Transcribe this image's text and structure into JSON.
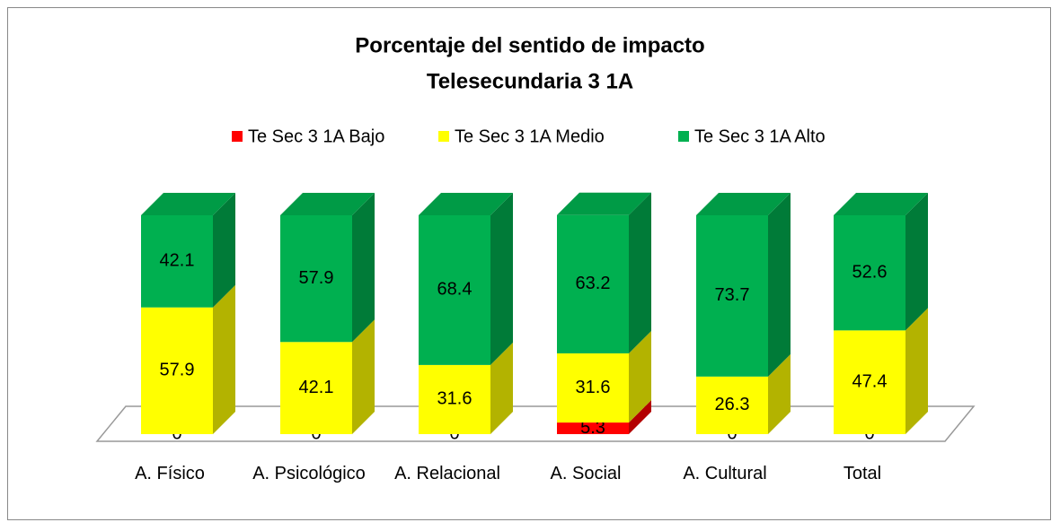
{
  "chart_data": {
    "type": "bar3d_stacked",
    "title": [
      "Porcentaje del sentido de impacto",
      "Telesecundaria 3 1A"
    ],
    "categories": [
      "A. Físico",
      "A. Psicológico",
      "A. Relacional",
      "A. Social",
      "A. Cultural",
      "Total"
    ],
    "series": [
      {
        "name": "Te Sec 3 1A Bajo",
        "color": "#ff0000",
        "values": [
          0,
          0,
          0,
          5.3,
          0,
          0
        ]
      },
      {
        "name": "Te Sec 3 1A Medio",
        "color": "#ffff00",
        "values": [
          57.9,
          42.1,
          31.6,
          31.6,
          26.3,
          47.4
        ]
      },
      {
        "name": "Te Sec 3 1A Alto",
        "color": "#00b050",
        "values": [
          42.1,
          57.9,
          68.4,
          63.2,
          73.7,
          52.6
        ]
      }
    ],
    "legend": "top"
  }
}
